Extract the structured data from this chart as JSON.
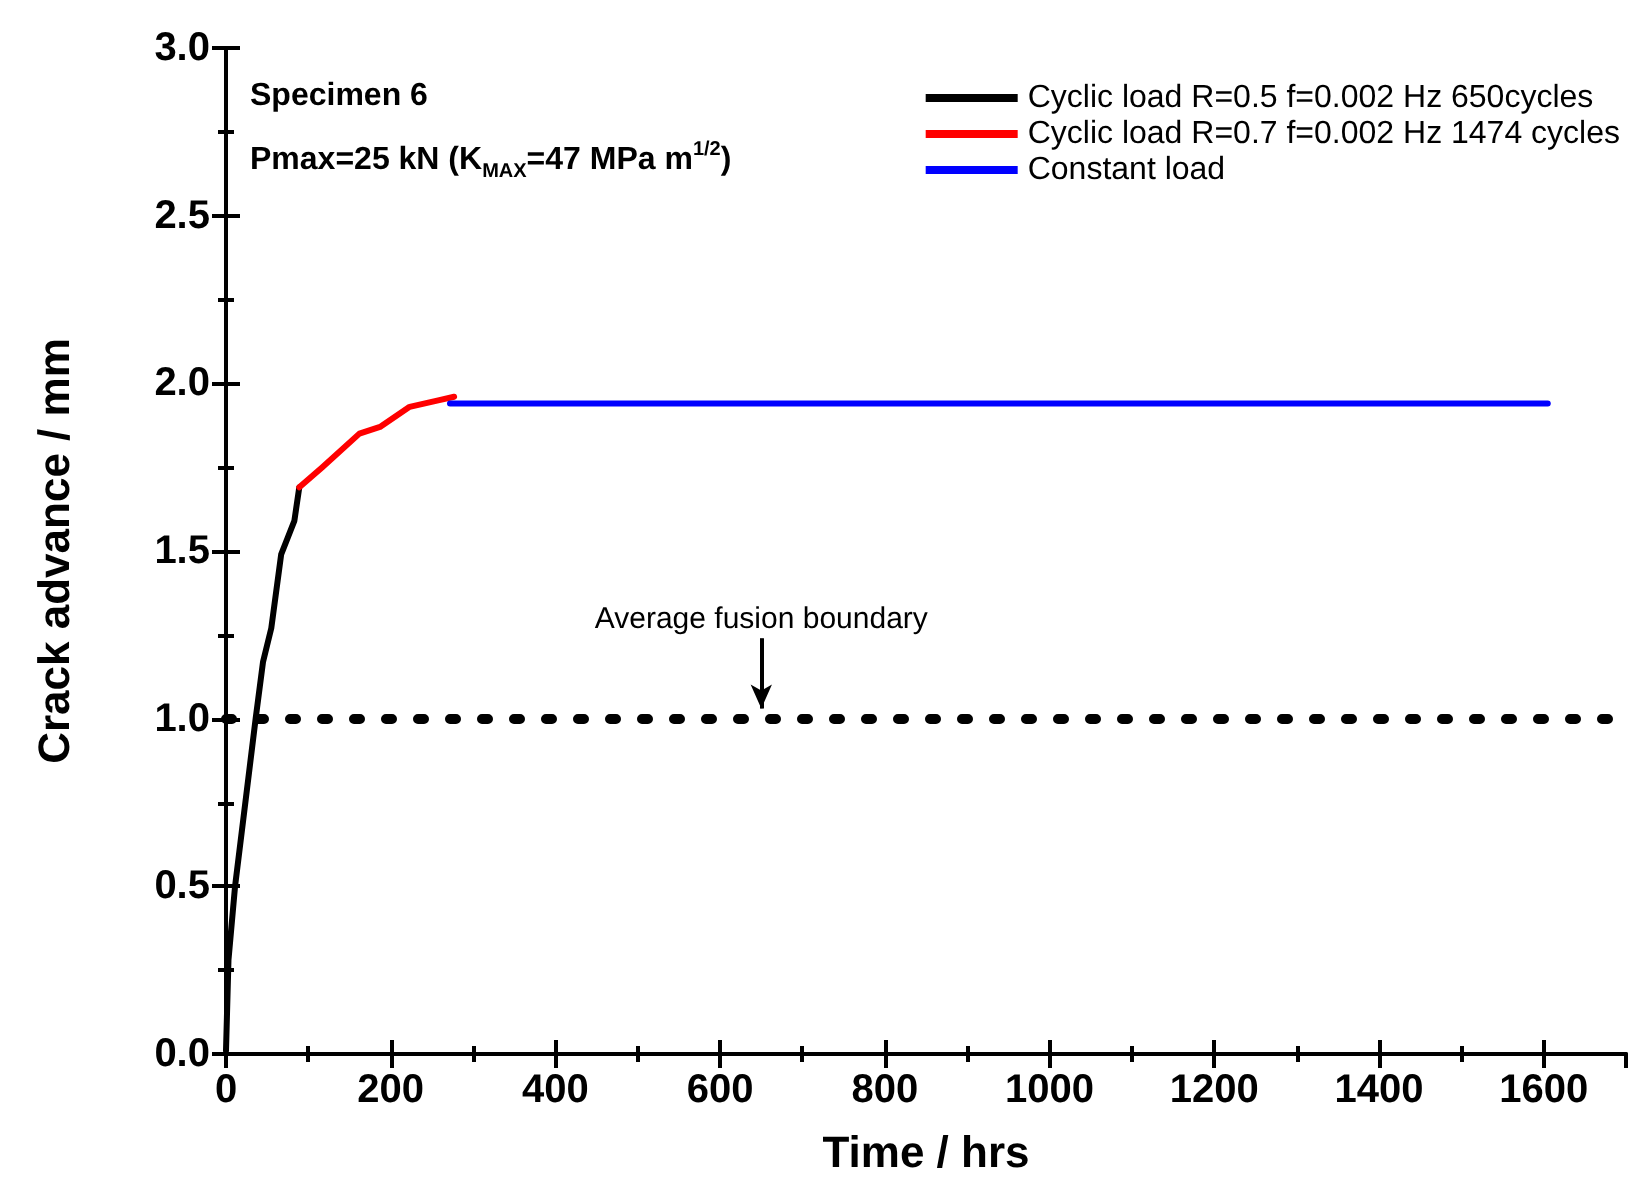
{
  "chart_data": {
    "type": "line",
    "xlabel": "Time / hrs",
    "ylabel": "Crack advance / mm",
    "xlim": [
      0,
      1700
    ],
    "xticks": [
      0,
      200,
      400,
      600,
      800,
      1000,
      1200,
      1400,
      1600
    ],
    "ylim": [
      0,
      3
    ],
    "yticks": [
      {
        "value": 0,
        "label": "0.0"
      },
      {
        "value": 0.5,
        "label": "0.5"
      },
      {
        "value": 1,
        "label": "1.0"
      },
      {
        "value": 1.5,
        "label": "1.5"
      },
      {
        "value": 2,
        "label": "2.0"
      },
      {
        "value": 2.5,
        "label": "2.5"
      },
      {
        "value": 3,
        "label": "3.0"
      }
    ],
    "grid": false,
    "legend": "top right",
    "marker": "none",
    "line_style": "solid",
    "series": [
      {
        "name": "Cyclic load R=0.5 f=0.002 Hz 650cycles",
        "color": "#000000",
        "x": [
          0,
          3,
          11,
          24,
          36,
          45,
          55,
          67,
          75,
          83,
          89
        ],
        "values": [
          0.01,
          0.28,
          0.5,
          0.76,
          1.0,
          1.17,
          1.27,
          1.49,
          1.54,
          1.59,
          1.69
        ]
      },
      {
        "name": "Cyclic load R=0.7 f=0.002 Hz 1474 cycles",
        "color": "#ff0000",
        "x": [
          89,
          117,
          162,
          187,
          223,
          259,
          277
        ],
        "values": [
          1.69,
          1.75,
          1.85,
          1.87,
          1.93,
          1.95,
          1.96
        ]
      },
      {
        "name": "Constant load",
        "color": "#0000ff",
        "x": [
          272,
          1605
        ],
        "values": [
          1.94,
          1.94
        ]
      }
    ],
    "ref_lines": [
      {
        "axis": "y",
        "value": 1.0,
        "color": "#000000",
        "line_style": "dotted"
      }
    ],
    "annotations": [
      "Specimen 6",
      "Pmax=25 kN (K$_{MAX}$=47 MPa m$^{1/2}$)",
      {
        "text": "Average fusion boundary",
        "x": 650,
        "y": 1.0
      }
    ]
  }
}
